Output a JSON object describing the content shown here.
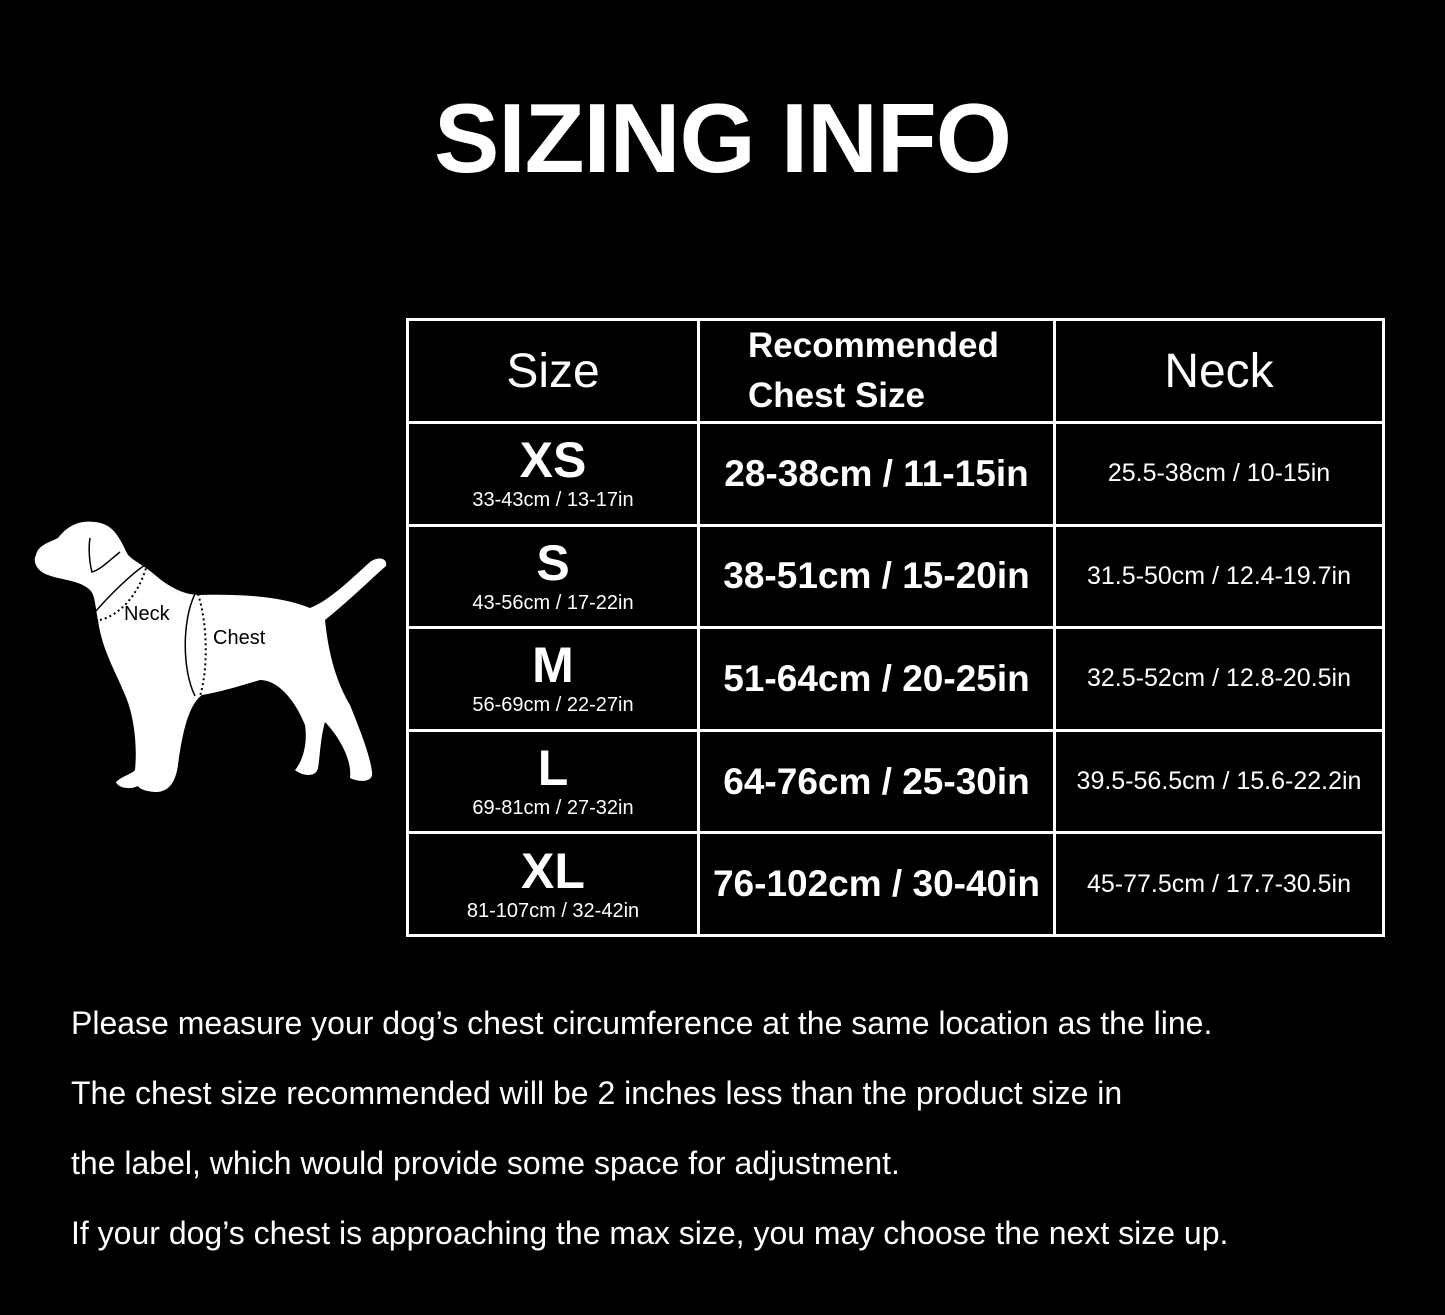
{
  "title": "SIZING INFO",
  "diagram": {
    "neck_label": "Neck",
    "chest_label": "Chest"
  },
  "table": {
    "headers": {
      "size": "Size",
      "chest_line1": "Recommended",
      "chest_line2": "Chest Size",
      "neck": "Neck"
    },
    "rows": [
      {
        "size": "XS",
        "size_range": "33-43cm / 13-17in",
        "chest": "28-38cm / 11-15in",
        "neck": "25.5-38cm / 10-15in"
      },
      {
        "size": "S",
        "size_range": "43-56cm / 17-22in",
        "chest": "38-51cm / 15-20in",
        "neck": "31.5-50cm / 12.4-19.7in"
      },
      {
        "size": "M",
        "size_range": "56-69cm / 22-27in",
        "chest": "51-64cm / 20-25in",
        "neck": "32.5-52cm / 12.8-20.5in"
      },
      {
        "size": "L",
        "size_range": "69-81cm / 27-32in",
        "chest": "64-76cm / 25-30in",
        "neck": "39.5-56.5cm / 15.6-22.2in"
      },
      {
        "size": "XL",
        "size_range": "81-107cm / 32-42in",
        "chest": "76-102cm / 30-40in",
        "neck": "45-77.5cm / 17.7-30.5in"
      }
    ]
  },
  "notes": [
    "Please measure your dog’s chest circumference at the same location as the line.",
    "The chest size recommended will be 2 inches less than the product size in",
    "the label, which would provide some space for adjustment.",
    "If your dog’s chest is approaching the max size, you may choose the next size up."
  ]
}
